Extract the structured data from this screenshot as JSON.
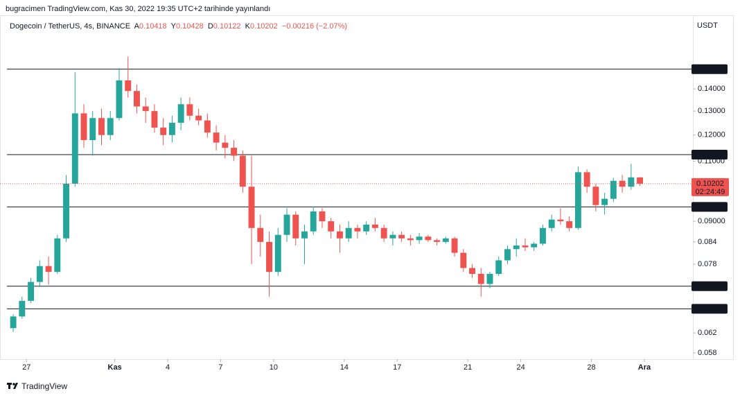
{
  "header": {
    "attribution": "bugracimen TradingView.com, Kas 30, 2022 19:35 UTC+2 tarihinde yayınlandı"
  },
  "chart_data": {
    "type": "candlestick",
    "symbol": "Dogecoin / TetherUS, 4s, BINANCE",
    "legend": [
      {
        "label": "A",
        "value": 0.10418
      },
      {
        "label": "Y",
        "value": 0.10428
      },
      {
        "label": "D",
        "value": 0.10122
      },
      {
        "label": "K",
        "value": 0.10202
      }
    ],
    "change": "−0.00216 (−2.07%)",
    "y_axis_label": "USDT",
    "log_scale": true,
    "up_color": "#26a69a",
    "down_color": "#ef5350",
    "candles": {
      "open": [
        0.063,
        0.0655,
        0.069,
        0.0735,
        0.0775,
        0.076,
        0.085,
        0.102,
        0.129,
        0.118,
        0.127,
        0.12,
        0.127,
        0.144,
        0.139,
        0.132,
        0.13,
        0.123,
        0.12,
        0.125,
        0.133,
        0.128,
        0.126,
        0.121,
        0.117,
        0.115,
        0.112,
        0.101,
        0.088,
        0.084,
        0.076,
        0.086,
        0.092,
        0.085,
        0.087,
        0.093,
        0.09,
        0.087,
        0.085,
        0.088,
        0.087,
        0.089,
        0.088,
        0.085,
        0.086,
        0.085,
        0.0845,
        0.0855,
        0.0845,
        0.084,
        0.085,
        0.081,
        0.077,
        0.0755,
        0.073,
        0.0755,
        0.079,
        0.082,
        0.083,
        0.0825,
        0.0835,
        0.088,
        0.0905,
        0.09,
        0.088,
        0.106,
        0.101,
        0.095,
        0.097,
        0.103,
        0.101,
        0.10418
      ],
      "high": [
        0.066,
        0.07,
        0.0745,
        0.079,
        0.08,
        0.086,
        0.105,
        0.148,
        0.133,
        0.13,
        0.131,
        0.13,
        0.15,
        0.156,
        0.142,
        0.136,
        0.133,
        0.127,
        0.128,
        0.136,
        0.136,
        0.131,
        0.129,
        0.124,
        0.12,
        0.118,
        0.114,
        0.112,
        0.092,
        0.087,
        0.088,
        0.094,
        0.093,
        0.089,
        0.0945,
        0.094,
        0.091,
        0.089,
        0.09,
        0.089,
        0.09,
        0.091,
        0.089,
        0.087,
        0.087,
        0.086,
        0.0865,
        0.086,
        0.085,
        0.0855,
        0.0855,
        0.082,
        0.078,
        0.077,
        0.076,
        0.08,
        0.083,
        0.085,
        0.085,
        0.084,
        0.089,
        0.092,
        0.094,
        0.0915,
        0.108,
        0.107,
        0.102,
        0.099,
        0.104,
        0.105,
        0.109,
        0.10428
      ],
      "low": [
        0.0622,
        0.065,
        0.0685,
        0.0725,
        0.0728,
        0.0755,
        0.084,
        0.101,
        0.115,
        0.112,
        0.116,
        0.118,
        0.126,
        0.136,
        0.129,
        0.125,
        0.121,
        0.116,
        0.117,
        0.122,
        0.126,
        0.124,
        0.119,
        0.114,
        0.111,
        0.11,
        0.099,
        0.078,
        0.08,
        0.07,
        0.075,
        0.084,
        0.083,
        0.078,
        0.086,
        0.088,
        0.085,
        0.081,
        0.084,
        0.085,
        0.086,
        0.087,
        0.084,
        0.083,
        0.084,
        0.083,
        0.0835,
        0.084,
        0.083,
        0.0835,
        0.08,
        0.076,
        0.0745,
        0.07,
        0.072,
        0.075,
        0.078,
        0.08,
        0.0815,
        0.0815,
        0.083,
        0.087,
        0.089,
        0.087,
        0.0875,
        0.099,
        0.093,
        0.092,
        0.096,
        0.099,
        0.1,
        0.10122
      ],
      "close": [
        0.0655,
        0.069,
        0.0735,
        0.0775,
        0.076,
        0.085,
        0.102,
        0.129,
        0.118,
        0.127,
        0.12,
        0.127,
        0.144,
        0.139,
        0.132,
        0.13,
        0.123,
        0.12,
        0.125,
        0.133,
        0.128,
        0.126,
        0.121,
        0.117,
        0.115,
        0.112,
        0.101,
        0.088,
        0.084,
        0.076,
        0.086,
        0.092,
        0.085,
        0.087,
        0.093,
        0.09,
        0.087,
        0.085,
        0.088,
        0.087,
        0.089,
        0.088,
        0.085,
        0.086,
        0.085,
        0.0845,
        0.0855,
        0.0845,
        0.084,
        0.085,
        0.081,
        0.077,
        0.0755,
        0.073,
        0.0755,
        0.079,
        0.082,
        0.083,
        0.0825,
        0.0835,
        0.088,
        0.0905,
        0.09,
        0.088,
        0.106,
        0.101,
        0.095,
        0.097,
        0.103,
        0.101,
        0.1042,
        0.10202
      ]
    },
    "xlim": [
      -1,
      77.5
    ],
    "xticks": [
      {
        "value": 2,
        "label": "27"
      },
      {
        "value": 12,
        "label": "Kas"
      },
      {
        "value": 18,
        "label": "4"
      },
      {
        "value": 24,
        "label": "7"
      },
      {
        "value": 30,
        "label": "10"
      },
      {
        "value": 38,
        "label": "14"
      },
      {
        "value": 44,
        "label": "17"
      },
      {
        "value": 52,
        "label": "21"
      },
      {
        "value": 58,
        "label": "24"
      },
      {
        "value": 66,
        "label": "28"
      },
      {
        "value": 72,
        "label": "Ara"
      }
    ],
    "ylim": [
      0.0568,
      0.1765
    ],
    "yticks": [
      {
        "value": 0.14,
        "label": "0.14000"
      },
      {
        "value": 0.13,
        "label": "0.13000"
      },
      {
        "value": 0.12,
        "label": "0.12000"
      },
      {
        "value": 0.11,
        "label": "0.11000"
      },
      {
        "value": 0.09,
        "label": "0.09000"
      },
      0.084,
      0.078,
      0.062,
      0.058
    ],
    "levels": [
      {
        "value": 0.1495,
        "label": "0.14950"
      },
      0.11242,
      0.09441,
      0.07247,
      {
        "value": 0.0672,
        "label": "0.06720"
      }
    ],
    "last_price": 0.10202,
    "countdown": "02:24:49"
  },
  "footer": {
    "brand": "TradingView"
  }
}
